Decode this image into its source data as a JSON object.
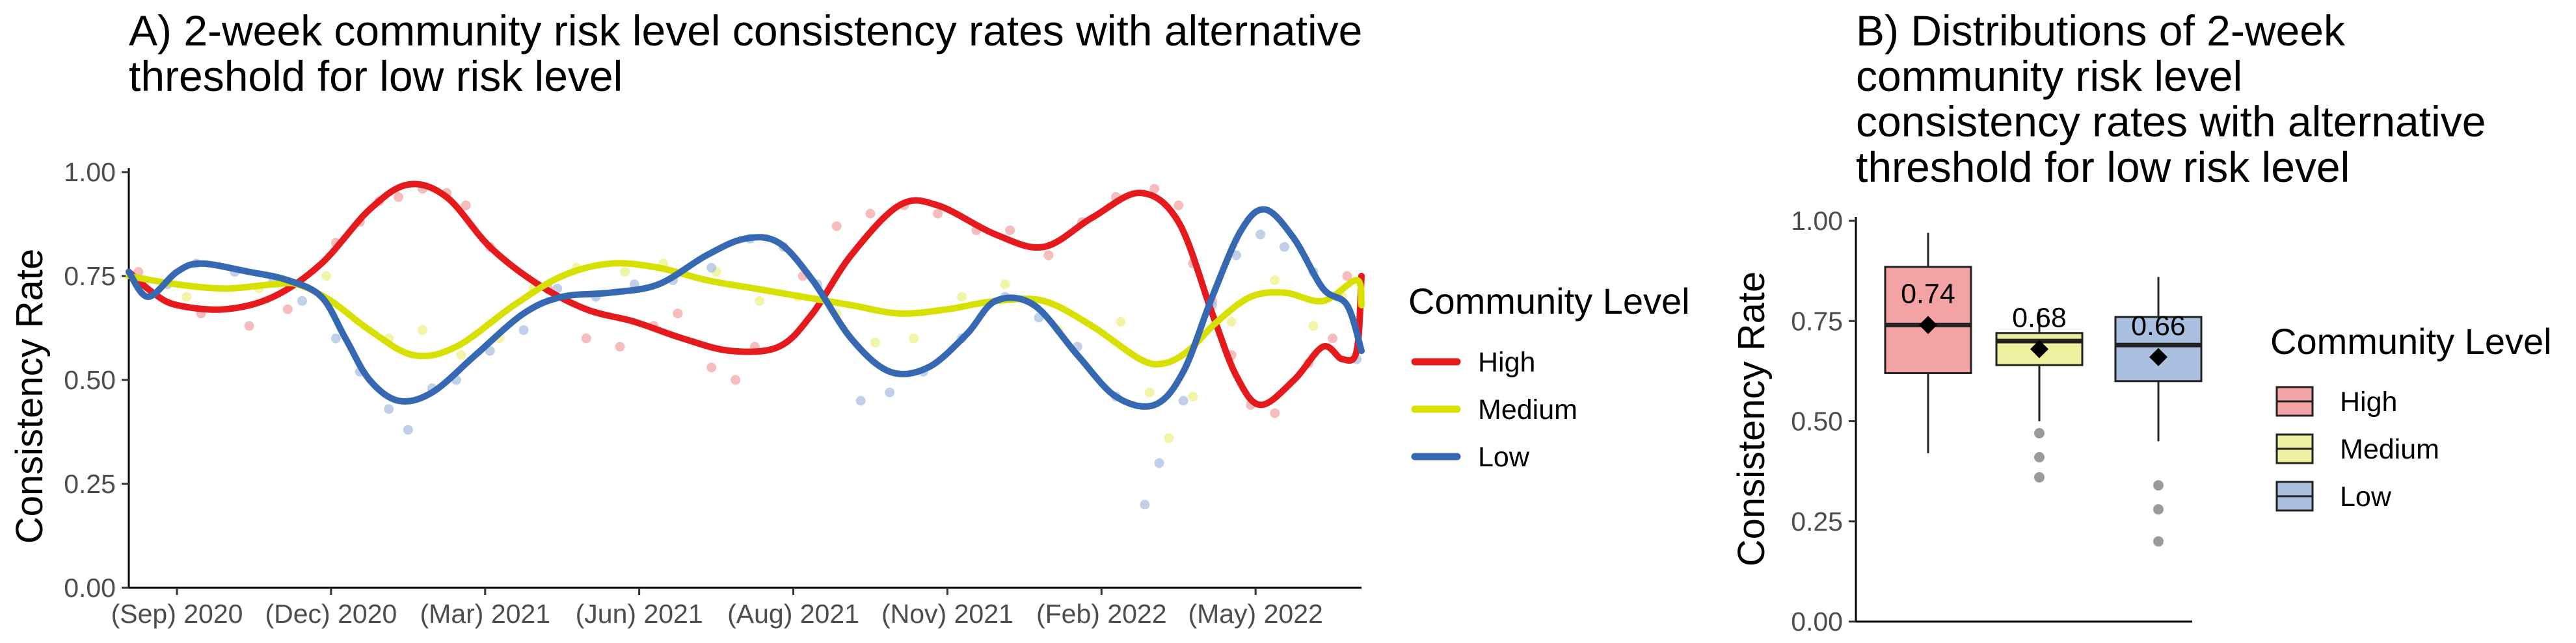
{
  "chart_data": [
    {
      "type": "line",
      "title": "A) 2-week community risk level consistency rates with alternative threshold for low risk level",
      "title_lines": [
        "A) 2-week community risk level consistency rates with alternative",
        "threshold for low risk level"
      ],
      "xlabel": "",
      "ylabel": "Consistency Rate",
      "xlim": [
        0,
        25.6
      ],
      "ylim": [
        0,
        1
      ],
      "x_ticks": [
        1,
        4.2,
        7.4,
        10.6,
        13.8,
        17,
        20.2,
        23.4
      ],
      "x_tick_labels": [
        "(Sep) 2020",
        "(Dec) 2020",
        "(Mar) 2021",
        "(Jun) 2021",
        "(Aug) 2021",
        "(Nov) 2021",
        "(Feb) 2022",
        "(May) 2022"
      ],
      "y_ticks": [
        0,
        0.25,
        0.5,
        0.75,
        1
      ],
      "y_tick_labels": [
        "0.00",
        "0.25",
        "0.50",
        "0.75",
        "1.00"
      ],
      "grid": false,
      "legend": {
        "title": "Community Level",
        "position": "right"
      },
      "series": [
        {
          "name": "High",
          "color": "#e41a1c",
          "points_color": "#f4a5a6",
          "smooth": [
            [
              0,
              0.76
            ],
            [
              0.5,
              0.71
            ],
            [
              1,
              0.68
            ],
            [
              2,
              0.67
            ],
            [
              3,
              0.7
            ],
            [
              4,
              0.78
            ],
            [
              5,
              0.91
            ],
            [
              5.8,
              0.97
            ],
            [
              6.6,
              0.94
            ],
            [
              7.5,
              0.82
            ],
            [
              8.5,
              0.73
            ],
            [
              9.5,
              0.67
            ],
            [
              10.5,
              0.64
            ],
            [
              11.5,
              0.6
            ],
            [
              12.5,
              0.57
            ],
            [
              13.5,
              0.58
            ],
            [
              14.2,
              0.66
            ],
            [
              15,
              0.8
            ],
            [
              16,
              0.92
            ],
            [
              16.8,
              0.92
            ],
            [
              18,
              0.85
            ],
            [
              19,
              0.82
            ],
            [
              20,
              0.89
            ],
            [
              21,
              0.95
            ],
            [
              21.8,
              0.88
            ],
            [
              22.5,
              0.66
            ],
            [
              23,
              0.51
            ],
            [
              23.5,
              0.44
            ],
            [
              24.2,
              0.5
            ],
            [
              24.8,
              0.58
            ],
            [
              25.2,
              0.55
            ],
            [
              25.5,
              0.57
            ],
            [
              25.6,
              0.75
            ]
          ],
          "points": [
            [
              0.2,
              0.76
            ],
            [
              1.5,
              0.66
            ],
            [
              2.5,
              0.63
            ],
            [
              3.3,
              0.67
            ],
            [
              4.3,
              0.83
            ],
            [
              4.8,
              0.88
            ],
            [
              5.2,
              0.93
            ],
            [
              5.6,
              0.94
            ],
            [
              6.1,
              0.96
            ],
            [
              6.6,
              0.95
            ],
            [
              7,
              0.92
            ],
            [
              7.5,
              0.82
            ],
            [
              8.7,
              0.72
            ],
            [
              9.5,
              0.6
            ],
            [
              10.2,
              0.58
            ],
            [
              10.9,
              0.63
            ],
            [
              11.4,
              0.66
            ],
            [
              12.1,
              0.53
            ],
            [
              12.6,
              0.5
            ],
            [
              13,
              0.58
            ],
            [
              14,
              0.75
            ],
            [
              14.7,
              0.87
            ],
            [
              15.4,
              0.9
            ],
            [
              16.1,
              0.92
            ],
            [
              16.8,
              0.9
            ],
            [
              17.6,
              0.86
            ],
            [
              18.3,
              0.86
            ],
            [
              19.1,
              0.8
            ],
            [
              19.8,
              0.88
            ],
            [
              20.5,
              0.94
            ],
            [
              21.3,
              0.96
            ],
            [
              21.8,
              0.92
            ],
            [
              22.1,
              0.78
            ],
            [
              22.5,
              0.69
            ],
            [
              22.9,
              0.56
            ],
            [
              23.3,
              0.44
            ],
            [
              23.8,
              0.42
            ],
            [
              24.5,
              0.54
            ],
            [
              25,
              0.6
            ],
            [
              25.3,
              0.75
            ]
          ]
        },
        {
          "name": "Medium",
          "color": "#d8e000",
          "points_color": "#eef08a",
          "smooth": [
            [
              0,
              0.75
            ],
            [
              1,
              0.73
            ],
            [
              2,
              0.72
            ],
            [
              3,
              0.73
            ],
            [
              3.5,
              0.73
            ],
            [
              4.2,
              0.69
            ],
            [
              5,
              0.62
            ],
            [
              5.9,
              0.56
            ],
            [
              6.8,
              0.58
            ],
            [
              8,
              0.68
            ],
            [
              9,
              0.75
            ],
            [
              10,
              0.78
            ],
            [
              11,
              0.77
            ],
            [
              12,
              0.74
            ],
            [
              13,
              0.72
            ],
            [
              14,
              0.7
            ],
            [
              15,
              0.68
            ],
            [
              16,
              0.66
            ],
            [
              17,
              0.67
            ],
            [
              18,
              0.69
            ],
            [
              19,
              0.69
            ],
            [
              20,
              0.63
            ],
            [
              21,
              0.55
            ],
            [
              21.5,
              0.54
            ],
            [
              22,
              0.57
            ],
            [
              22.6,
              0.64
            ],
            [
              23.3,
              0.7
            ],
            [
              24,
              0.71
            ],
            [
              24.8,
              0.69
            ],
            [
              25.5,
              0.74
            ],
            [
              25.6,
              0.68
            ]
          ],
          "points": [
            [
              1.2,
              0.7
            ],
            [
              2.7,
              0.72
            ],
            [
              4.1,
              0.75
            ],
            [
              5.4,
              0.6
            ],
            [
              6.1,
              0.62
            ],
            [
              6.9,
              0.56
            ],
            [
              7.7,
              0.6
            ],
            [
              8.4,
              0.72
            ],
            [
              9.3,
              0.77
            ],
            [
              10.3,
              0.76
            ],
            [
              11.1,
              0.78
            ],
            [
              12.2,
              0.76
            ],
            [
              13.1,
              0.69
            ],
            [
              13.9,
              0.7
            ],
            [
              14.7,
              0.66
            ],
            [
              15.5,
              0.59
            ],
            [
              16.3,
              0.6
            ],
            [
              17.3,
              0.7
            ],
            [
              18.2,
              0.73
            ],
            [
              19.3,
              0.62
            ],
            [
              20.6,
              0.64
            ],
            [
              21.2,
              0.47
            ],
            [
              21.6,
              0.36
            ],
            [
              22.1,
              0.46
            ],
            [
              22.9,
              0.64
            ],
            [
              23.8,
              0.74
            ],
            [
              24.6,
              0.63
            ],
            [
              25.2,
              0.7
            ]
          ]
        },
        {
          "name": "Low",
          "color": "#3669b2",
          "points_color": "#a9c0e0",
          "smooth": [
            [
              0,
              0.76
            ],
            [
              0.4,
              0.7
            ],
            [
              1,
              0.76
            ],
            [
              1.5,
              0.78
            ],
            [
              2.5,
              0.76
            ],
            [
              3.3,
              0.74
            ],
            [
              4,
              0.7
            ],
            [
              4.5,
              0.6
            ],
            [
              5,
              0.5
            ],
            [
              5.6,
              0.45
            ],
            [
              6.3,
              0.47
            ],
            [
              7.2,
              0.56
            ],
            [
              8.2,
              0.66
            ],
            [
              9,
              0.7
            ],
            [
              10,
              0.71
            ],
            [
              11,
              0.73
            ],
            [
              12,
              0.8
            ],
            [
              12.8,
              0.84
            ],
            [
              13.5,
              0.83
            ],
            [
              14.2,
              0.74
            ],
            [
              15,
              0.6
            ],
            [
              15.8,
              0.52
            ],
            [
              16.6,
              0.53
            ],
            [
              17.4,
              0.61
            ],
            [
              18,
              0.69
            ],
            [
              18.8,
              0.68
            ],
            [
              19.7,
              0.56
            ],
            [
              20.5,
              0.46
            ],
            [
              21.3,
              0.44
            ],
            [
              21.9,
              0.52
            ],
            [
              22.5,
              0.7
            ],
            [
              23.1,
              0.86
            ],
            [
              23.6,
              0.91
            ],
            [
              24.2,
              0.84
            ],
            [
              24.8,
              0.72
            ],
            [
              25.3,
              0.68
            ],
            [
              25.6,
              0.57
            ]
          ],
          "points": [
            [
              0.8,
              0.73
            ],
            [
              1.4,
              0.78
            ],
            [
              2.2,
              0.76
            ],
            [
              3,
              0.74
            ],
            [
              3.6,
              0.69
            ],
            [
              4.3,
              0.6
            ],
            [
              4.8,
              0.52
            ],
            [
              5.4,
              0.43
            ],
            [
              5.8,
              0.38
            ],
            [
              6.3,
              0.48
            ],
            [
              6.8,
              0.5
            ],
            [
              7.5,
              0.57
            ],
            [
              8.2,
              0.62
            ],
            [
              8.9,
              0.72
            ],
            [
              9.7,
              0.7
            ],
            [
              10.5,
              0.73
            ],
            [
              11.3,
              0.74
            ],
            [
              12.1,
              0.77
            ],
            [
              12.9,
              0.84
            ],
            [
              13.6,
              0.82
            ],
            [
              14.3,
              0.73
            ],
            [
              15.2,
              0.45
            ],
            [
              15.8,
              0.47
            ],
            [
              16.5,
              0.52
            ],
            [
              17.3,
              0.6
            ],
            [
              18.2,
              0.7
            ],
            [
              18.9,
              0.65
            ],
            [
              19.7,
              0.58
            ],
            [
              20.5,
              0.46
            ],
            [
              21.1,
              0.2
            ],
            [
              21.4,
              0.3
            ],
            [
              21.9,
              0.45
            ],
            [
              22.5,
              0.68
            ],
            [
              23,
              0.8
            ],
            [
              23.5,
              0.85
            ],
            [
              24,
              0.82
            ],
            [
              24.6,
              0.76
            ],
            [
              25.1,
              0.7
            ],
            [
              25.5,
              0.55
            ]
          ]
        }
      ]
    },
    {
      "type": "box",
      "title": "B) Distributions of 2-week community risk level consistency rates with alternative threshold for low risk level",
      "title_lines": [
        "B) Distributions of 2-week",
        "community risk level",
        "consistency rates with alternative",
        "threshold for low risk level"
      ],
      "xlabel": "",
      "ylabel": "Consistency Rate",
      "ylim": [
        0,
        1
      ],
      "y_ticks": [
        0,
        0.25,
        0.5,
        0.75,
        1
      ],
      "y_tick_labels": [
        "0.00",
        "0.25",
        "0.50",
        "0.75",
        "1.00"
      ],
      "grid": false,
      "legend": {
        "title": "Community Level",
        "position": "right"
      },
      "categories": [
        "High",
        "Medium",
        "Low"
      ],
      "boxes": [
        {
          "name": "High",
          "fill": "#f4a3a4",
          "min": 0.42,
          "q1": 0.62,
          "median": 0.74,
          "q3": 0.885,
          "max": 0.97,
          "mean": 0.74,
          "mean_label": "0.74",
          "outliers": []
        },
        {
          "name": "Medium",
          "fill": "#eef0a0",
          "min": 0.5,
          "q1": 0.64,
          "median": 0.7,
          "q3": 0.72,
          "max": 0.78,
          "mean": 0.68,
          "mean_label": "0.68",
          "outliers": [
            0.47,
            0.41,
            0.36
          ]
        },
        {
          "name": "Low",
          "fill": "#a9c0e0",
          "min": 0.45,
          "q1": 0.6,
          "median": 0.69,
          "q3": 0.76,
          "max": 0.86,
          "mean": 0.66,
          "mean_label": "0.66",
          "outliers": [
            0.34,
            0.28,
            0.2
          ]
        }
      ]
    }
  ]
}
